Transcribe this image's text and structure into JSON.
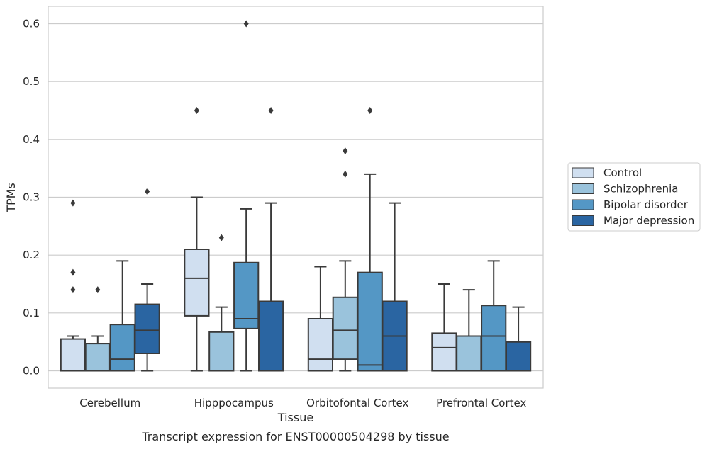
{
  "caption": "Transcript expression for ENST00000504298 by tissue",
  "chart_data": {
    "type": "box",
    "title": "",
    "xlabel": "Tissue",
    "ylabel": "TPMs",
    "ylim": [
      -0.03,
      0.63
    ],
    "yticks": [
      0.0,
      0.1,
      0.2,
      0.3,
      0.4,
      0.5,
      0.6
    ],
    "ytick_labels": [
      "0.0",
      "0.1",
      "0.2",
      "0.3",
      "0.4",
      "0.5",
      "0.6"
    ],
    "grid": "horizontal",
    "categories": [
      "Cerebellum",
      "Hipppocampus",
      "Orbitofontal Cortex",
      "Prefrontal Cortex"
    ],
    "legend_position": "right",
    "series": [
      {
        "name": "Control",
        "color": "#d0dff0",
        "boxes": [
          {
            "min": 0.0,
            "q1": 0.0,
            "median": 0.0,
            "q3": 0.055,
            "max": 0.06,
            "outliers": [
              0.14,
              0.17,
              0.29
            ]
          },
          {
            "min": 0.0,
            "q1": 0.095,
            "median": 0.16,
            "q3": 0.21,
            "max": 0.3,
            "outliers": [
              0.45
            ]
          },
          {
            "min": 0.0,
            "q1": 0.0,
            "median": 0.02,
            "q3": 0.09,
            "max": 0.18,
            "outliers": []
          },
          {
            "min": 0.0,
            "q1": 0.0,
            "median": 0.04,
            "q3": 0.065,
            "max": 0.15,
            "outliers": []
          }
        ]
      },
      {
        "name": "Schizophrenia",
        "color": "#9ac3dc",
        "boxes": [
          {
            "min": 0.0,
            "q1": 0.0,
            "median": 0.0,
            "q3": 0.047,
            "max": 0.06,
            "outliers": [
              0.14
            ]
          },
          {
            "min": 0.0,
            "q1": 0.0,
            "median": 0.0,
            "q3": 0.067,
            "max": 0.11,
            "outliers": [
              0.23
            ]
          },
          {
            "min": 0.0,
            "q1": 0.02,
            "median": 0.07,
            "q3": 0.127,
            "max": 0.19,
            "outliers": [
              0.34,
              0.38
            ]
          },
          {
            "min": 0.0,
            "q1": 0.0,
            "median": 0.06,
            "q3": 0.06,
            "max": 0.14,
            "outliers": []
          }
        ]
      },
      {
        "name": "Bipolar disorder",
        "color": "#5497c5",
        "boxes": [
          {
            "min": 0.0,
            "q1": 0.0,
            "median": 0.02,
            "q3": 0.08,
            "max": 0.19,
            "outliers": []
          },
          {
            "min": 0.0,
            "q1": 0.073,
            "median": 0.09,
            "q3": 0.187,
            "max": 0.28,
            "outliers": [
              0.6
            ]
          },
          {
            "min": 0.0,
            "q1": 0.0,
            "median": 0.01,
            "q3": 0.17,
            "max": 0.34,
            "outliers": [
              0.45
            ]
          },
          {
            "min": 0.0,
            "q1": 0.0,
            "median": 0.06,
            "q3": 0.113,
            "max": 0.19,
            "outliers": []
          }
        ]
      },
      {
        "name": "Major depression",
        "color": "#2a65a2",
        "boxes": [
          {
            "min": 0.0,
            "q1": 0.03,
            "median": 0.07,
            "q3": 0.115,
            "max": 0.15,
            "outliers": [
              0.31
            ]
          },
          {
            "min": 0.0,
            "q1": 0.0,
            "median": 0.12,
            "q3": 0.12,
            "max": 0.29,
            "outliers": [
              0.45
            ]
          },
          {
            "min": 0.0,
            "q1": 0.0,
            "median": 0.06,
            "q3": 0.12,
            "max": 0.29,
            "outliers": []
          },
          {
            "min": 0.0,
            "q1": 0.0,
            "median": 0.05,
            "q3": 0.05,
            "max": 0.11,
            "outliers": []
          }
        ]
      }
    ]
  }
}
